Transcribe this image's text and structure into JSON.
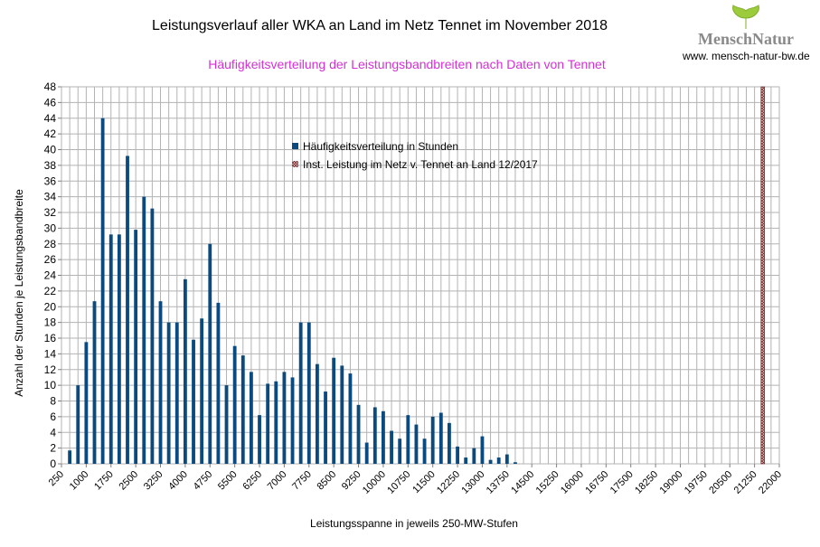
{
  "header": {
    "title": "Leistungsverlauf aller WKA an Land im Netz Tennet im November 2018",
    "subtitle": "Häufigkeitsverteilung der Leistungsbandbreiten nach Daten von Tennet"
  },
  "logo": {
    "brand": "MenschNatur",
    "url": "www. mensch-natur-bw.de",
    "icon": "ginkgo-leaf-icon"
  },
  "colors": {
    "bar": "#0b4a7e",
    "installed": "#7a2a2a",
    "subtitle": "#d530d5",
    "grid": "#b3b3b3"
  },
  "chart_data": {
    "type": "bar",
    "xlabel": "Leistungsspanne in jeweils 250-MW-Stufen",
    "ylabel": "Anzahl der Stunden je Leistungsbandbreite",
    "ylim": [
      0,
      48
    ],
    "ytick_step": 2,
    "bin_width": 250,
    "x_start": 250,
    "x_end": 22000,
    "tick_labels": [
      "250",
      "1000",
      "1750",
      "2500",
      "3250",
      "4000",
      "4750",
      "5500",
      "6250",
      "7000",
      "7750",
      "8500",
      "9250",
      "10000",
      "10750",
      "11500",
      "12250",
      "13000",
      "13750",
      "14500",
      "15250",
      "16000",
      "16750",
      "17500",
      "18250",
      "19000",
      "19750",
      "20500",
      "21250",
      "22000"
    ],
    "legend_position": "top-center",
    "grid": true,
    "series": [
      {
        "name": "Häufigkeitsverteilung in Stunden",
        "type": "bar",
        "x": [
          500,
          750,
          1000,
          1250,
          1500,
          1750,
          2000,
          2250,
          2500,
          2750,
          3000,
          3250,
          3500,
          3750,
          4000,
          4250,
          4500,
          4750,
          5000,
          5250,
          5500,
          5750,
          6000,
          6250,
          6500,
          6750,
          7000,
          7250,
          7500,
          7750,
          8000,
          8250,
          8500,
          8750,
          9000,
          9250,
          9500,
          9750,
          10000,
          10250,
          10500,
          10750,
          11000,
          11250,
          11500,
          11750,
          12000,
          12250,
          12500,
          12750,
          13000,
          13250,
          13500,
          13750,
          14000
        ],
        "values": [
          1.7,
          10,
          15.5,
          20.7,
          44,
          29.2,
          29.2,
          39.2,
          29.8,
          34,
          32.5,
          20.7,
          18,
          18,
          23.5,
          15.8,
          18.5,
          28,
          20.5,
          10,
          15,
          13.8,
          11.7,
          6.2,
          10.2,
          10.5,
          11.7,
          11,
          18,
          18,
          12.7,
          9.2,
          13.5,
          12.5,
          11.5,
          7.5,
          2.7,
          7.2,
          6.7,
          4.2,
          3.2,
          6.2,
          5,
          3.2,
          6,
          6.5,
          5.2,
          2.2,
          0.8,
          2,
          3.5,
          0.5,
          0.8,
          1.2,
          0.2
        ]
      },
      {
        "name": "Inst. Leistung im Netz v. Tennet an Land 12/2017",
        "type": "marker-line",
        "x": 21500
      }
    ]
  }
}
